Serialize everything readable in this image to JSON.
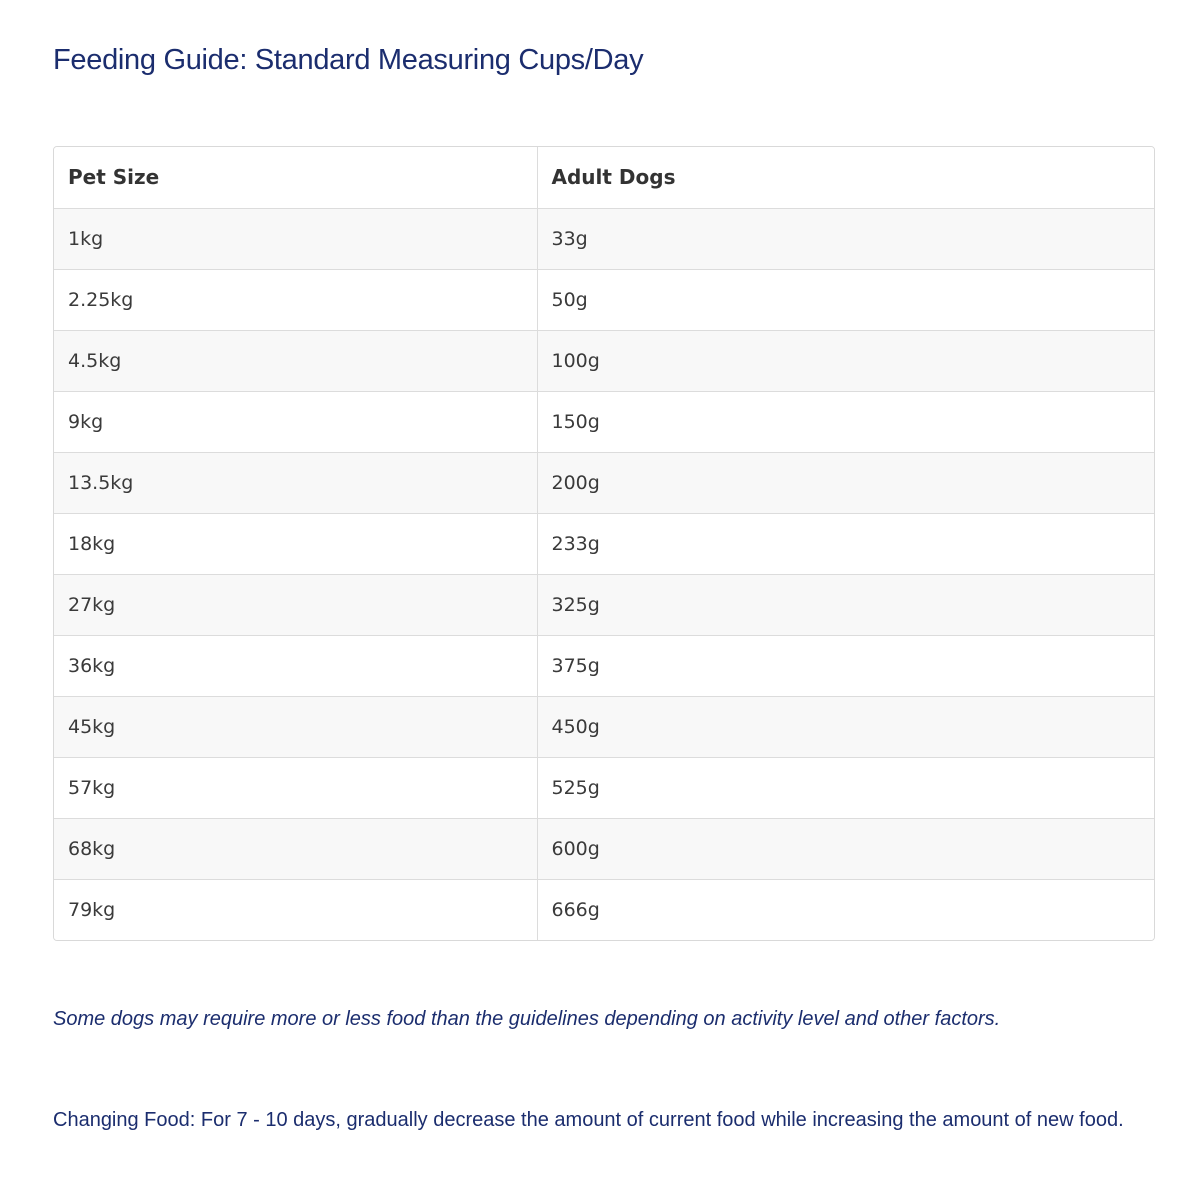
{
  "title": "Feeding Guide: Standard Measuring Cups/Day",
  "table": {
    "headers": [
      "Pet Size",
      "Adult Dogs"
    ],
    "rows": [
      [
        "1kg",
        "33g"
      ],
      [
        "2.25kg",
        "50g"
      ],
      [
        "4.5kg",
        "100g"
      ],
      [
        "9kg",
        "150g"
      ],
      [
        "13.5kg",
        "200g"
      ],
      [
        "18kg",
        "233g"
      ],
      [
        "27kg",
        "325g"
      ],
      [
        "36kg",
        "375g"
      ],
      [
        "45kg",
        "450g"
      ],
      [
        "57kg",
        "525g"
      ],
      [
        "68kg",
        "600g"
      ],
      [
        "79kg",
        "666g"
      ]
    ]
  },
  "note": "Some dogs may require more or less food than the guidelines depending on activity level and other factors.",
  "changing_food": "Changing Food: For 7 - 10 days, gradually decrease the amount of current food while increasing the amount of new food.",
  "colors": {
    "heading_text": "#1b2d6e",
    "table_text": "#3a3a3a",
    "row_stripe": "#f8f8f8",
    "border": "#dcdcdc"
  }
}
